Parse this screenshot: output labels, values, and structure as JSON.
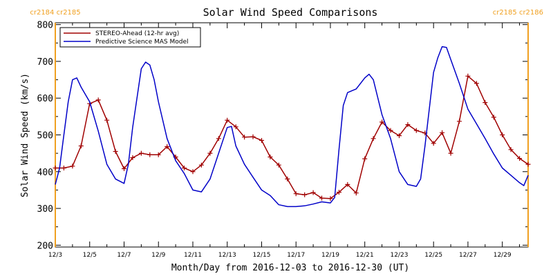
{
  "chart_data": {
    "type": "line",
    "title": "Solar Wind Speed Comparisons",
    "xlabel": "Month/Day from 2016-12-03 to 2016-12-30 (UT)",
    "ylabel": "Solar Wind Speed (km/s)",
    "xlim": [
      "2016-12-03T00:00",
      "2016-12-30T12:00"
    ],
    "ylim": [
      195,
      805
    ],
    "x_tick_labels": [
      {
        "date": "2016-12-03",
        "label": "12/3"
      },
      {
        "date": "2016-12-05",
        "label": "12/5"
      },
      {
        "date": "2016-12-07",
        "label": "12/7"
      },
      {
        "date": "2016-12-09",
        "label": "12/9"
      },
      {
        "date": "2016-12-11",
        "label": "12/11"
      },
      {
        "date": "2016-12-13",
        "label": "12/13"
      },
      {
        "date": "2016-12-15",
        "label": "12/15"
      },
      {
        "date": "2016-12-17",
        "label": "12/17"
      },
      {
        "date": "2016-12-19",
        "label": "12/19"
      },
      {
        "date": "2016-12-21",
        "label": "12/21"
      },
      {
        "date": "2016-12-23",
        "label": "12/23"
      },
      {
        "date": "2016-12-25",
        "label": "12/25"
      },
      {
        "date": "2016-12-27",
        "label": "12/27"
      },
      {
        "date": "2016-12-29",
        "label": "12/29"
      }
    ],
    "y_ticks": [
      200,
      300,
      400,
      500,
      600,
      700,
      800
    ],
    "grid": false,
    "legend_position": "top-left",
    "carrington_markers": [
      {
        "x": "2016-12-03T00:00",
        "label": "cr2184 cr2185",
        "side": "left"
      },
      {
        "x": "2016-12-30T12:00",
        "label": "cr2185 cr2186",
        "side": "right"
      }
    ],
    "series": [
      {
        "name": "STEREO-Ahead (12-hr avg)",
        "color": "#a00000",
        "marker": "plus",
        "x": [
          "2016-12-03T00:00",
          "2016-12-03T12:00",
          "2016-12-04T00:00",
          "2016-12-04T12:00",
          "2016-12-05T00:00",
          "2016-12-05T12:00",
          "2016-12-06T00:00",
          "2016-12-06T12:00",
          "2016-12-07T00:00",
          "2016-12-07T12:00",
          "2016-12-08T00:00",
          "2016-12-08T12:00",
          "2016-12-09T00:00",
          "2016-12-09T12:00",
          "2016-12-10T00:00",
          "2016-12-10T12:00",
          "2016-12-11T00:00",
          "2016-12-11T12:00",
          "2016-12-12T00:00",
          "2016-12-12T12:00",
          "2016-12-13T00:00",
          "2016-12-13T12:00",
          "2016-12-14T00:00",
          "2016-12-14T12:00",
          "2016-12-15T00:00",
          "2016-12-15T12:00",
          "2016-12-16T00:00",
          "2016-12-16T12:00",
          "2016-12-17T00:00",
          "2016-12-17T12:00",
          "2016-12-18T00:00",
          "2016-12-18T12:00",
          "2016-12-19T00:00",
          "2016-12-19T12:00",
          "2016-12-20T00:00",
          "2016-12-20T12:00",
          "2016-12-21T00:00",
          "2016-12-21T12:00",
          "2016-12-22T00:00",
          "2016-12-22T12:00",
          "2016-12-23T00:00",
          "2016-12-23T12:00",
          "2016-12-24T00:00",
          "2016-12-24T12:00",
          "2016-12-25T00:00",
          "2016-12-25T12:00",
          "2016-12-26T00:00",
          "2016-12-26T12:00",
          "2016-12-27T00:00",
          "2016-12-27T12:00",
          "2016-12-28T00:00",
          "2016-12-28T12:00",
          "2016-12-29T00:00",
          "2016-12-29T12:00",
          "2016-12-30T00:00",
          "2016-12-30T12:00"
        ],
        "values": [
          410,
          410,
          415,
          470,
          585,
          595,
          540,
          455,
          408,
          438,
          450,
          446,
          446,
          468,
          440,
          410,
          400,
          418,
          450,
          490,
          540,
          522,
          494,
          495,
          485,
          440,
          418,
          380,
          340,
          337,
          343,
          328,
          327,
          344,
          365,
          342,
          435,
          490,
          535,
          512,
          498,
          528,
          512,
          505,
          477,
          506,
          450,
          537,
          660,
          640,
          588,
          548,
          500,
          460,
          436,
          420
        ]
      },
      {
        "name": "Predictive Science MAS Model",
        "color": "#0000c8",
        "marker": "none",
        "x": [
          "2016-12-03T00:00",
          "2016-12-03T06:00",
          "2016-12-03T12:00",
          "2016-12-03T18:00",
          "2016-12-04T00:00",
          "2016-12-04T06:00",
          "2016-12-04T12:00",
          "2016-12-05T00:00",
          "2016-12-05T12:00",
          "2016-12-06T00:00",
          "2016-12-06T12:00",
          "2016-12-07T00:00",
          "2016-12-07T06:00",
          "2016-12-07T12:00",
          "2016-12-08T00:00",
          "2016-12-08T06:00",
          "2016-12-08T12:00",
          "2016-12-08T18:00",
          "2016-12-09T00:00",
          "2016-12-09T12:00",
          "2016-12-10T00:00",
          "2016-12-10T12:00",
          "2016-12-11T00:00",
          "2016-12-11T12:00",
          "2016-12-12T00:00",
          "2016-12-12T12:00",
          "2016-12-13T00:00",
          "2016-12-13T06:00",
          "2016-12-13T12:00",
          "2016-12-14T00:00",
          "2016-12-14T12:00",
          "2016-12-15T00:00",
          "2016-12-15T12:00",
          "2016-12-16T00:00",
          "2016-12-16T12:00",
          "2016-12-17T00:00",
          "2016-12-17T12:00",
          "2016-12-18T00:00",
          "2016-12-18T12:00",
          "2016-12-19T00:00",
          "2016-12-19T06:00",
          "2016-12-19T12:00",
          "2016-12-19T18:00",
          "2016-12-20T00:00",
          "2016-12-20T12:00",
          "2016-12-21T00:00",
          "2016-12-21T06:00",
          "2016-12-21T12:00",
          "2016-12-22T00:00",
          "2016-12-22T12:00",
          "2016-12-23T00:00",
          "2016-12-23T12:00",
          "2016-12-24T00:00",
          "2016-12-24T06:00",
          "2016-12-24T12:00",
          "2016-12-25T00:00",
          "2016-12-25T06:00",
          "2016-12-25T12:00",
          "2016-12-25T18:00",
          "2016-12-26T00:00",
          "2016-12-26T12:00",
          "2016-12-27T00:00",
          "2016-12-27T12:00",
          "2016-12-28T00:00",
          "2016-12-28T12:00",
          "2016-12-29T00:00",
          "2016-12-29T12:00",
          "2016-12-30T00:00",
          "2016-12-30T06:00",
          "2016-12-30T12:00"
        ],
        "values": [
          365,
          410,
          500,
          590,
          650,
          655,
          630,
          590,
          510,
          420,
          380,
          368,
          420,
          520,
          680,
          698,
          690,
          650,
          590,
          490,
          430,
          395,
          350,
          345,
          380,
          450,
          520,
          523,
          470,
          420,
          385,
          350,
          335,
          310,
          305,
          305,
          307,
          312,
          318,
          315,
          330,
          460,
          580,
          615,
          625,
          655,
          665,
          650,
          555,
          490,
          400,
          365,
          360,
          380,
          470,
          670,
          710,
          740,
          738,
          705,
          640,
          570,
          530,
          490,
          448,
          410,
          390,
          370,
          362,
          390
        ]
      }
    ]
  }
}
